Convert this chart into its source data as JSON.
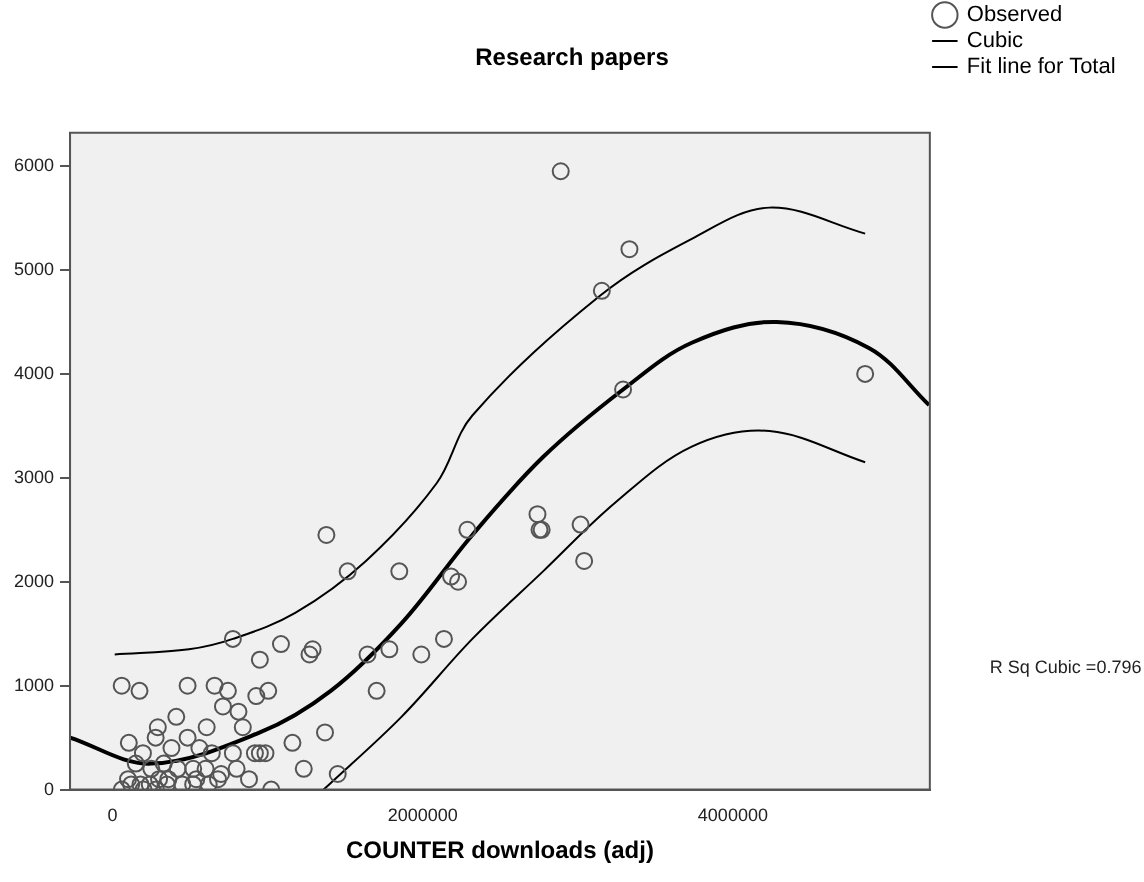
{
  "chart_data": {
    "type": "scatter",
    "title": "Research papers",
    "xlabel": "COUNTER downloads (adj)",
    "xlim": [
      -274000,
      5270000
    ],
    "xticks": [
      0,
      2000000,
      4000000
    ],
    "ylim": [
      0,
      6320
    ],
    "yticks": [
      0,
      1000,
      2000,
      3000,
      4000,
      5000,
      6000
    ],
    "grid": false,
    "legend": "top right",
    "marker": "circle",
    "annotations": [
      "R Sq Cubic =0.796"
    ],
    "series": [
      {
        "name": "Observed",
        "type": "scatter",
        "color": "#555555",
        "x": [
          59000,
          174000,
          484000,
          658000,
          744000,
          927000,
          1004000,
          812000,
          712000,
          411000,
          292000,
          607000,
          105000,
          196000,
          484000,
          278000,
          840000,
          950000,
          918000,
          986000,
          776000,
          560000,
          640000,
          380000,
          150000,
          250000,
          330000,
          420000,
          520000,
          600000,
          700000,
          800000,
          880000,
          100000,
          180000,
          240000,
          300000,
          360000,
          450000,
          540000,
          620000,
          680000,
          60000,
          120000,
          200000,
          280000,
          350000,
          520000,
          1023000,
          1160000,
          1233000,
          1370000,
          1452000,
          776000,
          950000,
          1086000,
          1270000,
          1290000,
          1379000,
          1516000,
          1644000,
          1703000,
          1785000,
          1849000,
          1991000,
          2137000,
          2183000,
          2228000,
          2288000,
          2740000,
          2753000,
          2767000,
          3018000,
          3041000,
          2890000,
          3333000,
          3155000,
          3292000,
          4853000
        ],
        "values": [
          1000,
          950,
          1000,
          1000,
          950,
          900,
          950,
          750,
          800,
          700,
          600,
          600,
          450,
          350,
          500,
          500,
          600,
          350,
          350,
          350,
          350,
          400,
          350,
          400,
          250,
          200,
          250,
          200,
          200,
          200,
          150,
          200,
          100,
          100,
          50,
          50,
          100,
          100,
          50,
          100,
          50,
          100,
          0,
          50,
          0,
          0,
          50,
          50,
          0,
          450,
          200,
          550,
          150,
          1450,
          1250,
          1400,
          1300,
          1350,
          2450,
          2100,
          1300,
          950,
          1350,
          2100,
          1300,
          1450,
          2050,
          2000,
          2500,
          2650,
          2500,
          2500,
          2550,
          2200,
          5950,
          5200,
          4800,
          3850,
          4000
        ]
      },
      {
        "name": "Cubic",
        "type": "line",
        "color": "#000000",
        "marker": "none",
        "x": [
          -274000,
          246000,
          950000,
          1407000,
          1863000,
          2320000,
          2776000,
          3292000,
          3735000,
          4283000,
          4877000,
          5265000
        ],
        "values": [
          500,
          250,
          550,
          950,
          1600,
          2450,
          3200,
          3850,
          4300,
          4500,
          4250,
          3700
        ]
      },
      {
        "name": "Fit line for Total",
        "type": "line",
        "color": "#000000",
        "marker": "none",
        "x": [
          14000,
          493000,
          776000,
          1178000,
          1634000,
          2091000,
          2320000,
          3141000,
          3735000,
          4237000,
          4853000
        ],
        "values": [
          1300,
          1350,
          1450,
          1700,
          2200,
          2950,
          3600,
          4750,
          5300,
          5600,
          5350
        ]
      },
      {
        "type": "line",
        "color": "#000000",
        "marker": "none",
        "x": [
          1361000,
          1863000,
          2320000,
          2776000,
          3233000,
          3735000,
          4237000,
          4853000
        ],
        "values": [
          0,
          700,
          1450,
          2100,
          2750,
          3300,
          3450,
          3150
        ]
      }
    ]
  }
}
